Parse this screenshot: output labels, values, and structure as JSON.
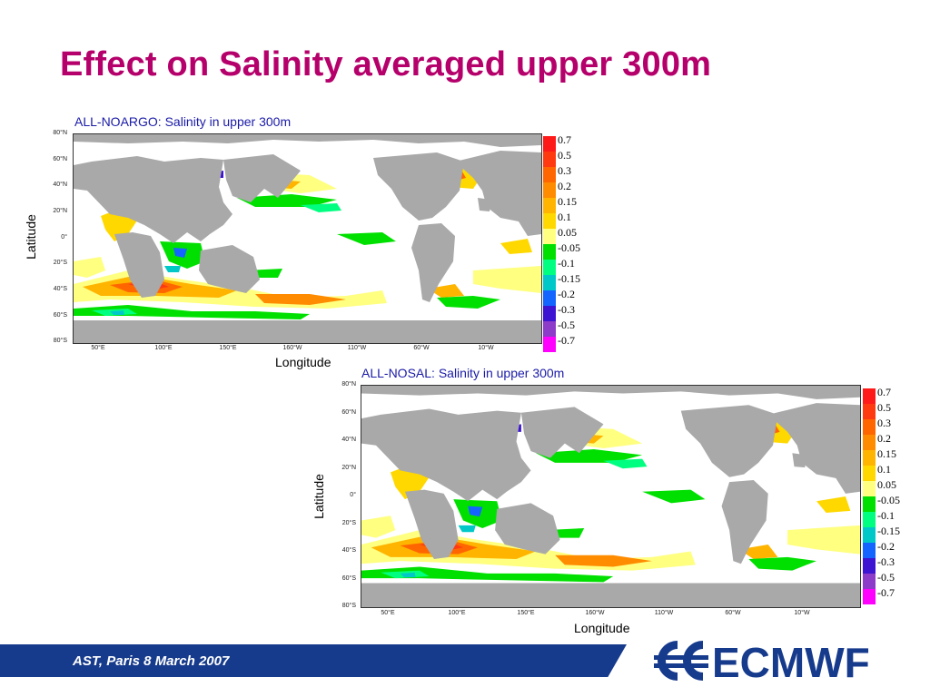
{
  "slide": {
    "title": "Effect on Salinity averaged upper 300m",
    "footer": "AST, Paris  8 March 2007",
    "logo_text": "ECMWF"
  },
  "colors": {
    "title": "#b5006b",
    "map_title": "#1a1aa8",
    "footer_bar": "#163a8c",
    "land": "#a9a9a9",
    "logo": "#163a8c"
  },
  "panels": [
    {
      "title": "ALL-NOARGO: Salinity in upper 300m",
      "xlabel": "Longitude",
      "ylabel": "Latitude",
      "lat_ticks": [
        "80°N",
        "60°N",
        "40°N",
        "20°N",
        "0°",
        "20°S",
        "40°S",
        "60°S",
        "80°S"
      ],
      "lon_ticks": [
        "50°E",
        "100°E",
        "150°E",
        "160°W",
        "110°W",
        "60°W",
        "10°W"
      ]
    },
    {
      "title": "ALL-NOSAL: Salinity in upper 300m",
      "xlabel": "Longitude",
      "ylabel": "Latitude",
      "lat_ticks": [
        "80°N",
        "60°N",
        "40°N",
        "20°N",
        "0°",
        "20°S",
        "40°S",
        "60°S",
        "80°S"
      ],
      "lon_ticks": [
        "50°E",
        "100°E",
        "150°E",
        "160°W",
        "110°W",
        "60°W",
        "10°W"
      ]
    }
  ],
  "legend": [
    {
      "label": "0.7",
      "color": "#ff1a1a"
    },
    {
      "label": "0.5",
      "color": "#ff3a10"
    },
    {
      "label": "0.3",
      "color": "#ff6600"
    },
    {
      "label": "0.2",
      "color": "#ff8c00"
    },
    {
      "label": "0.15",
      "color": "#ffb400"
    },
    {
      "label": "0.1",
      "color": "#ffd800"
    },
    {
      "label": "0.05",
      "color": "#ffff80"
    },
    {
      "label": "-0.05",
      "color": "#00e000"
    },
    {
      "label": "-0.1",
      "color": "#00ff80"
    },
    {
      "label": "-0.15",
      "color": "#00c8c8"
    },
    {
      "label": "-0.2",
      "color": "#1464ff"
    },
    {
      "label": "-0.3",
      "color": "#3c14d2"
    },
    {
      "label": "-0.5",
      "color": "#8c3cc8"
    },
    {
      "label": "-0.7",
      "color": "#ff00ff"
    }
  ]
}
